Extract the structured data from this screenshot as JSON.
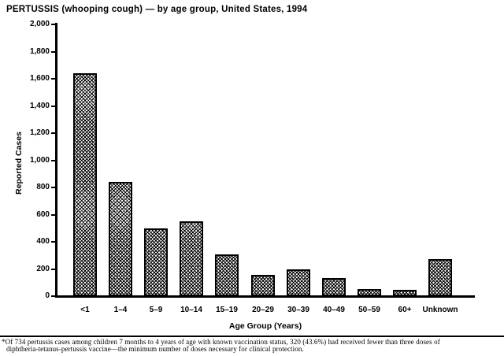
{
  "figure": {
    "title": "PERTUSSIS (whooping cough) — by age group, United States, 1994",
    "footnote_lines": [
      "*Of 734 pertussis cases among children 7 months to 4 years of age with known vaccination status, 320 (43.6%) had received fewer than three doses of",
      "diphtheria-tetanus-pertussis vaccine—the minimum number of doses necessary for clinical protection."
    ]
  },
  "chart_data": {
    "type": "bar",
    "title": "PERTUSSIS (whooping cough) — by age group, United States, 1994",
    "xlabel": "Age Group (Years)",
    "ylabel": "Reported Cases",
    "categories": [
      "<1",
      "1–4",
      "5–9",
      "10–14",
      "15–19",
      "20–29",
      "30–39",
      "40–49",
      "50–59",
      "60+",
      "Unknown"
    ],
    "values": [
      1640,
      840,
      500,
      550,
      310,
      155,
      195,
      135,
      55,
      45,
      275
    ],
    "ylim": [
      0,
      2000
    ],
    "ytick_values": [
      0,
      200,
      400,
      600,
      800,
      1000,
      1200,
      1400,
      1600,
      1800,
      2000
    ],
    "ytick_labels": [
      "0",
      "200",
      "400",
      "600",
      "800",
      "1,000",
      "1,200",
      "1,400",
      "1,600",
      "1,800",
      "2,000"
    ],
    "grid": false,
    "legend": "none",
    "bar_style": {
      "fill_pattern": "diagonal-checker-dither",
      "pattern_color": "#000000",
      "fill_background": "#ffffff",
      "border_color": "#000000"
    },
    "colors": {
      "text": "#000000",
      "axis": "#000000",
      "page_background": "#ffffff"
    }
  }
}
